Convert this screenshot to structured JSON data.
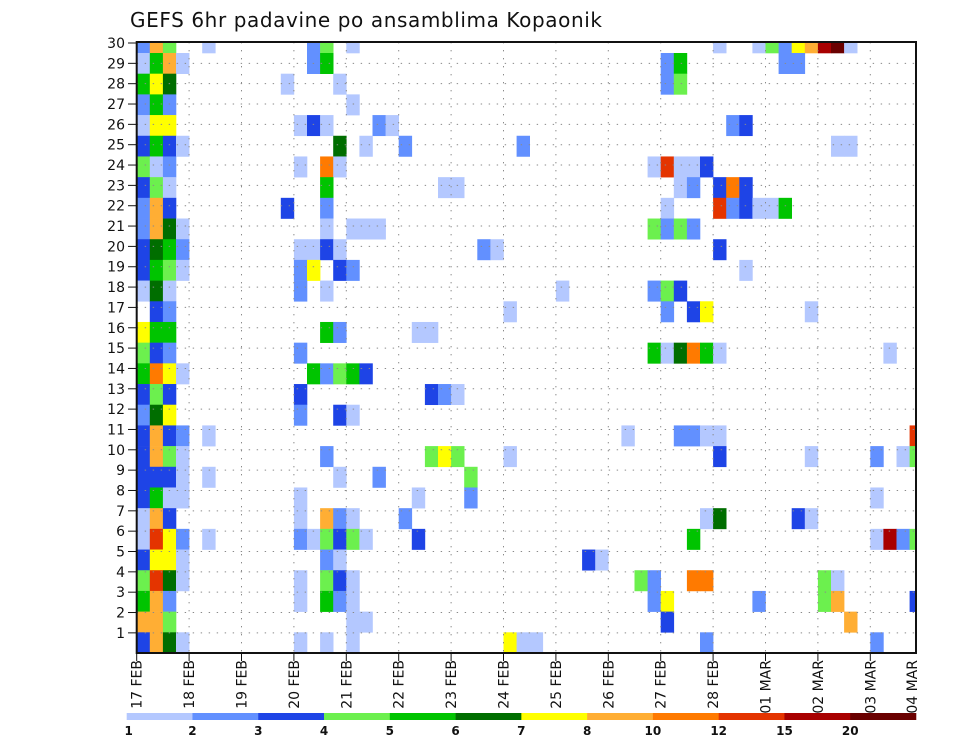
{
  "chart_data": {
    "type": "heatmap",
    "title": "GEFS 6hr padavine po ansamblima Kopaonik",
    "x_tick_labels": [
      "17 FEB",
      "18 FEB",
      "19 FEB",
      "20 FEB",
      "21 FEB",
      "22 FEB",
      "23 FEB",
      "24 FEB",
      "25 FEB",
      "26 FEB",
      "27 FEB",
      "28 FEB",
      "01 MAR",
      "02 MAR",
      "03 MAR",
      "04 MAR"
    ],
    "y_tick_labels": [
      "1",
      "2",
      "3",
      "4",
      "5",
      "6",
      "7",
      "8",
      "9",
      "10",
      "11",
      "12",
      "13",
      "14",
      "15",
      "16",
      "17",
      "18",
      "19",
      "20",
      "21",
      "22",
      "23",
      "24",
      "25",
      "26",
      "27",
      "28",
      "29",
      "30"
    ],
    "columns_per_day": 4,
    "n_columns": 60,
    "colorbar_labels": [
      "1",
      "2",
      "3",
      "4",
      "5",
      "6",
      "7",
      "8",
      "10",
      "12",
      "15",
      "20"
    ],
    "bins": [
      {
        "code": "a",
        "range": [
          1,
          2
        ],
        "color": "#b4c8ff"
      },
      {
        "code": "b",
        "range": [
          2,
          3
        ],
        "color": "#6290ff"
      },
      {
        "code": "c",
        "range": [
          3,
          4
        ],
        "color": "#1e44e6"
      },
      {
        "code": "d",
        "range": [
          4,
          5
        ],
        "color": "#6cf04e"
      },
      {
        "code": "e",
        "range": [
          5,
          6
        ],
        "color": "#00c400"
      },
      {
        "code": "f",
        "range": [
          6,
          7
        ],
        "color": "#006e00"
      },
      {
        "code": "g",
        "range": [
          7,
          8
        ],
        "color": "#ffff00"
      },
      {
        "code": "h",
        "range": [
          8,
          10
        ],
        "color": "#ffae34"
      },
      {
        "code": "i",
        "range": [
          10,
          12
        ],
        "color": "#ff7a00"
      },
      {
        "code": "j",
        "range": [
          12,
          15
        ],
        "color": "#e43400"
      },
      {
        "code": "k",
        "range": [
          15,
          20
        ],
        "color": "#a80000"
      },
      {
        "code": "l",
        "range": [
          20,
          null
        ],
        "color": "#6a0000"
      }
    ],
    "cells_format": "rows listed top to bottom; each entry is <time-step column index><bin code>",
    "rows_top_to_bottom": [
      "0b 1h 2d 5a 13b 14d 16a 44a 47a 48d 49b 50g 51h 52k 53l 54a",
      "0a 1e 2h 3a 13b 14e 40b 41e 49b 50b",
      "0e 1g 2f 11a 15a 40b 41d",
      "0b 1e 2b 16a",
      "0a 1g 2g 12a 13c 14a 18b 19a 45b 46c",
      "0c 1e 2c 3a 15f 17a 20b 29b 53a 54a",
      "0d 1a 2b 12a 14i 15a 39a 40j 41a 42a 43c",
      "0c 1d 2a 14e 23a 24a 41a 42b 44c 45i 46c",
      "0b 1h 2c 11c 14b 40a 44j 45b 46c 47a 48a 49e",
      "0b 1h 2f 3a 14a 16a 17a 18a 39d 40b 41d 42b",
      "0c 1f 2e 3b 12a 13a 14c 15a 26b 27a 44c",
      "0c 1e 2d 3a 12b 13g 15c 16b 46a",
      "0a 1f 2a 12b 14a 32a 39b 40d 41c",
      "1c 2b 28a 40b 42c 43g 51a",
      "0g 1e 2e 14e 15b 21a 22a",
      "0d 1c 2b 12b 39e 40a 41f 42i 43e 44a 57a",
      "0e 1i 2g 3a 13e 14b 15d 16e 17c",
      "0c 1d 2c 12c 22c 23b 24a",
      "0b 1f 2g 12b 15c 16a",
      "0c 1h 2c 3b 5a 37a 41b 42b 43a 44a 59j",
      "0c 1h 2d 3a 14b 22d 23g 24d 28a 44c 51a 56b 58a 59d",
      "0c 1c 2c 3a 5a 15a 18b 25d",
      "0c 1e 2a 3a 12a 21a 25b 56a",
      "0a 1h 2c 12a 14h 15b 16a 20b 43a 44f 50c 51a",
      "0a 1j 2g 3b 5a 12b 13a 14d 15c 16d 17a 21c 42e 56a 57k 58b 59d",
      "0c 1g 2g 3a 14b 15a 34c 35a",
      "0d 1j 2f 3a 12a 14d 15c 16a 38d 39b 42i 43i 52d 53a",
      "0e 1h 2b 12a 14e 15b 16a 39b 40g 47b 52d 53h 59c",
      "0h 1h 2d 16a 17a 40c 54h",
      "0c 1h 2f 3a 12a 14a 16a 28g 29a 30a 43b 56b"
    ]
  }
}
